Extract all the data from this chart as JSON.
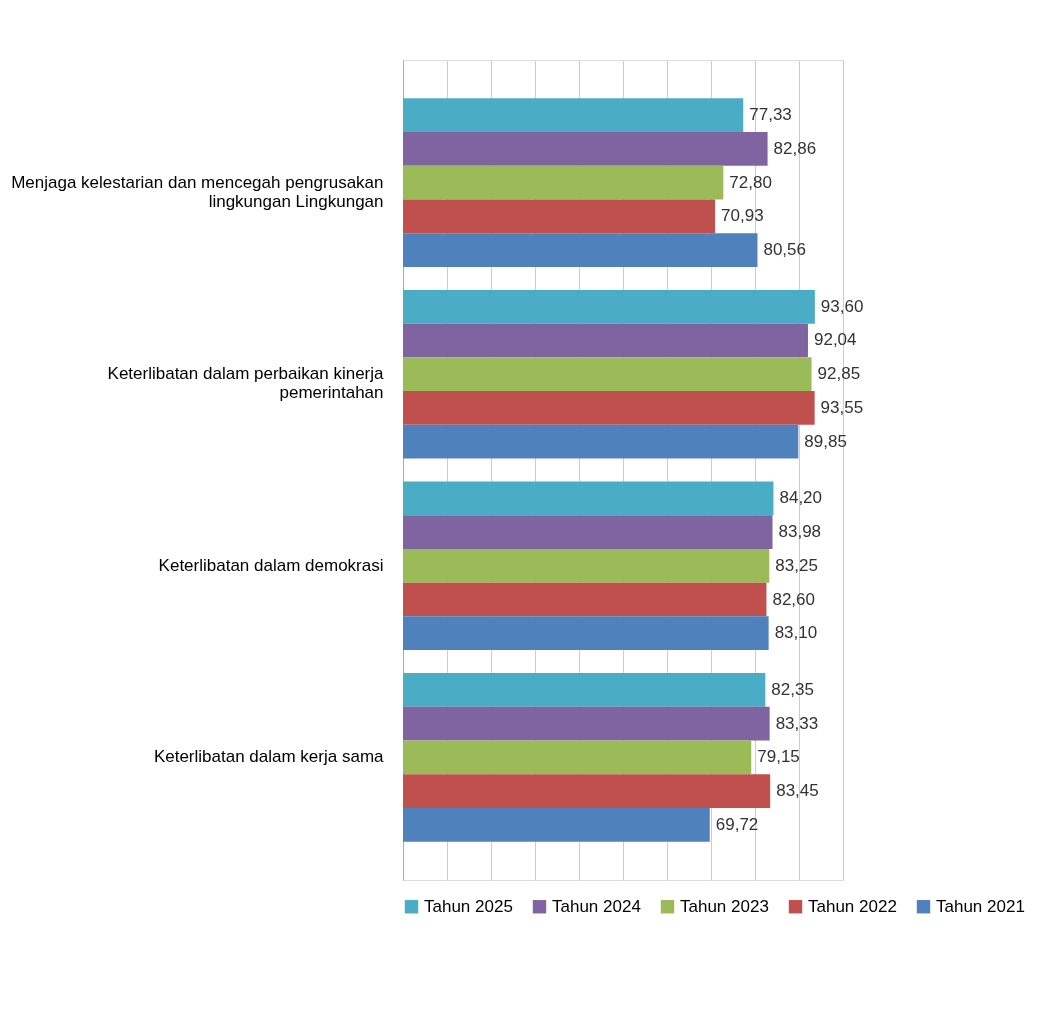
{
  "chart_data": {
    "type": "bar",
    "orientation": "horizontal",
    "categories": [
      "Menjaga kelestarian dan mencegah pengrusakan lingkungan Lingkungan",
      "Keterlibatan dalam perbaikan kinerja pemerintahan",
      "Keterlibatan dalam demokrasi",
      "Keterlibatan dalam kerja sama"
    ],
    "series": [
      {
        "name": "Tahun 2025",
        "color": "#4bacc6",
        "values": [
          77.33,
          93.6,
          84.2,
          82.35
        ],
        "value_labels": [
          "77,33",
          "93,60",
          "84,20",
          "82,35"
        ]
      },
      {
        "name": "Tahun 2024",
        "color": "#8064a2",
        "values": [
          82.86,
          92.04,
          83.98,
          83.33
        ],
        "value_labels": [
          "82,86",
          "92,04",
          "83,98",
          "83,33"
        ]
      },
      {
        "name": "Tahun 2023",
        "color": "#9bbb59",
        "values": [
          72.8,
          92.85,
          83.25,
          79.15
        ],
        "value_labels": [
          "72,80",
          "92,85",
          "83,25",
          "79,15"
        ]
      },
      {
        "name": "Tahun 2022",
        "color": "#c0504d",
        "values": [
          70.93,
          93.55,
          82.6,
          83.45
        ],
        "value_labels": [
          "70,93",
          "93,55",
          "82,60",
          "83,45"
        ]
      },
      {
        "name": "Tahun 2021",
        "color": "#4f81bd",
        "values": [
          80.56,
          89.85,
          83.1,
          69.72
        ],
        "value_labels": [
          "80,56",
          "89,85",
          "83,10",
          "69,72"
        ]
      }
    ],
    "tick_labels": "y",
    "grid": "x",
    "legend": "bottom"
  }
}
